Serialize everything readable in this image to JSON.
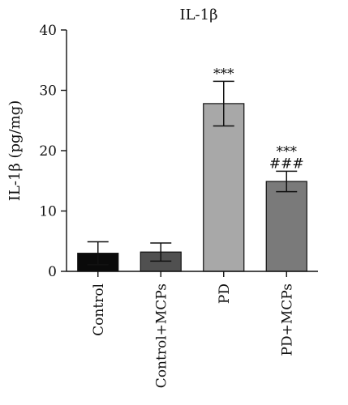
{
  "chart_data": {
    "type": "bar",
    "title": "IL-1β",
    "ylabel": "IL-1β (pg/mg)",
    "xlabel": "",
    "ylim": [
      0,
      40
    ],
    "yticks": [
      0,
      10,
      20,
      30,
      40
    ],
    "categories": [
      "Control",
      "Control+MCPs",
      "PD",
      "PD+MCPs"
    ],
    "values": [
      3.0,
      3.2,
      27.8,
      14.9
    ],
    "errors": [
      1.9,
      1.5,
      3.7,
      1.7
    ],
    "annotations": [
      [],
      [],
      [
        "***"
      ],
      [
        "***",
        "###"
      ]
    ],
    "bar_colors": [
      "#0a0a0a",
      "#505050",
      "#a8a8a8",
      "#7a7a7a"
    ],
    "grid": false,
    "legend": "none"
  }
}
